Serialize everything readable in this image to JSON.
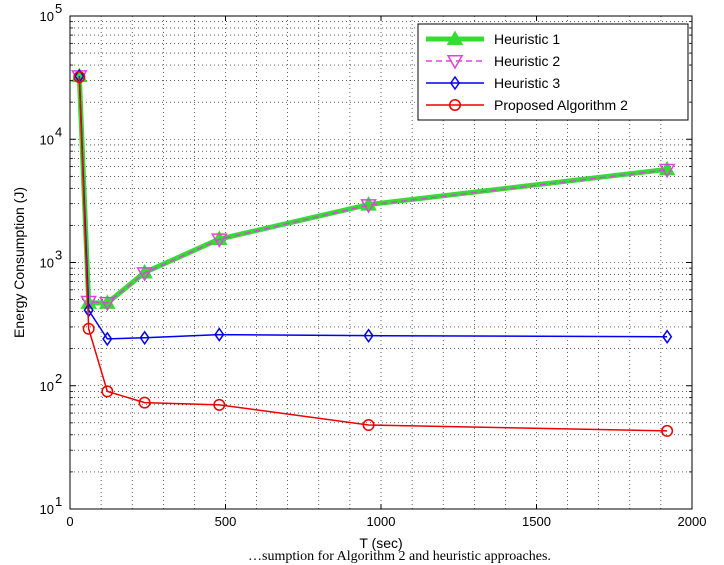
{
  "chart_data": {
    "type": "line",
    "xlabel": "T (sec)",
    "ylabel": "Energy Consumption (J)",
    "x_ticks": [
      "0",
      "500",
      "1000",
      "1500",
      "2000"
    ],
    "y_ticks": [
      {
        "base": "10",
        "exp": "1"
      },
      {
        "base": "10",
        "exp": "2"
      },
      {
        "base": "10",
        "exp": "3"
      },
      {
        "base": "10",
        "exp": "4"
      },
      {
        "base": "10",
        "exp": "5"
      }
    ],
    "xlim": [
      0,
      2000
    ],
    "ylim": [
      10,
      100000
    ],
    "yscale": "log",
    "grid": true,
    "legend_position": "top-right",
    "x": [
      30,
      60,
      120,
      240,
      480,
      960,
      1920
    ],
    "series": [
      {
        "name": "Heuristic 1",
        "color": "#33dd33",
        "marker": "triangle-up",
        "values": [
          32500,
          470,
          470,
          830,
          1550,
          2950,
          5700
        ]
      },
      {
        "name": "Heuristic 2",
        "color": "#dd44dd",
        "marker": "triangle-down",
        "values": [
          32500,
          480,
          470,
          820,
          1540,
          2920,
          5650
        ]
      },
      {
        "name": "Heuristic 3",
        "color": "#0000ee",
        "marker": "diamond",
        "values": [
          32500,
          410,
          240,
          245,
          260,
          255,
          250
        ]
      },
      {
        "name": "Proposed Algorithm 2",
        "color": "#ee0000",
        "marker": "circle",
        "values": [
          32000,
          290,
          90,
          73,
          70,
          48,
          43
        ]
      }
    ]
  },
  "caption": "…sumption for Algorithm 2 and heuristic approaches."
}
